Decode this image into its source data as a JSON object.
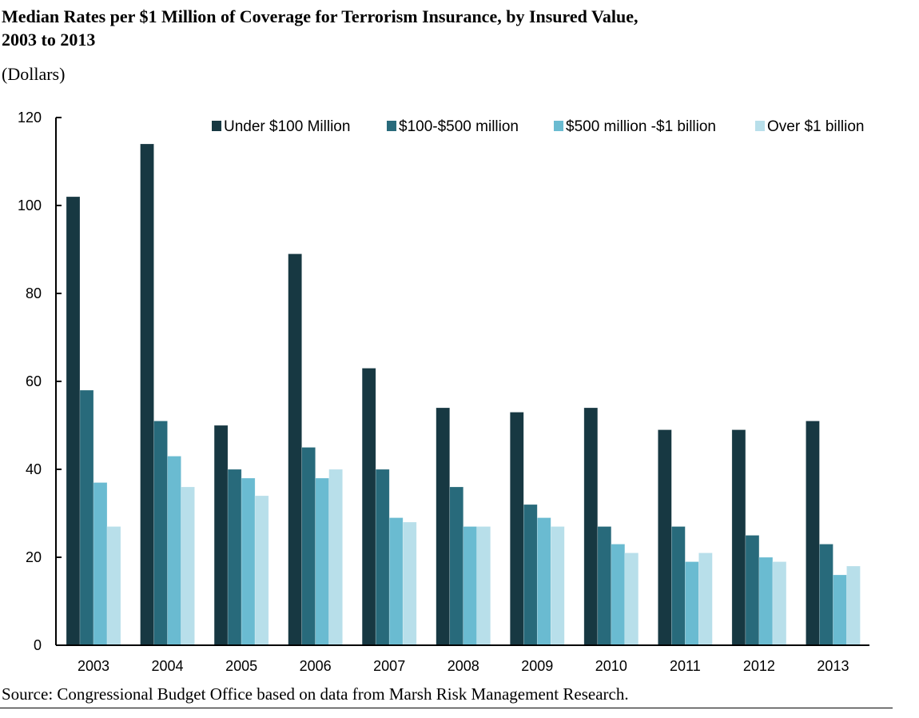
{
  "chart_data": {
    "type": "bar",
    "title": "Median Rates per $1 Million of Coverage for Terrorism Insurance, by Insured Value, 2003 to 2013",
    "units_label": "(Dollars)",
    "xlabel": "",
    "ylabel": "",
    "ylim": [
      0,
      120
    ],
    "yticks": [
      0,
      20,
      40,
      60,
      80,
      100,
      120
    ],
    "grid": false,
    "legend_position": "top-right",
    "categories": [
      "2003",
      "2004",
      "2005",
      "2006",
      "2007",
      "2008",
      "2009",
      "2010",
      "2011",
      "2012",
      "2013"
    ],
    "series": [
      {
        "name": "Under $100 Million",
        "color": "#173842",
        "values": [
          102,
          114,
          50,
          89,
          63,
          54,
          53,
          54,
          49,
          49,
          51
        ]
      },
      {
        "name": "$100-$500 million",
        "color": "#286a7b",
        "values": [
          58,
          51,
          40,
          45,
          40,
          36,
          32,
          27,
          27,
          25,
          23
        ]
      },
      {
        "name": "$500 million -$1 billion",
        "color": "#6abbd1",
        "values": [
          37,
          43,
          38,
          38,
          29,
          27,
          29,
          23,
          19,
          20,
          16
        ]
      },
      {
        "name": "Over $1 billion",
        "color": "#b8dfea",
        "values": [
          27,
          36,
          34,
          40,
          28,
          27,
          27,
          21,
          21,
          19,
          18
        ]
      }
    ],
    "source": "Source: Congressional Budget Office based on data from Marsh Risk Management Research."
  }
}
